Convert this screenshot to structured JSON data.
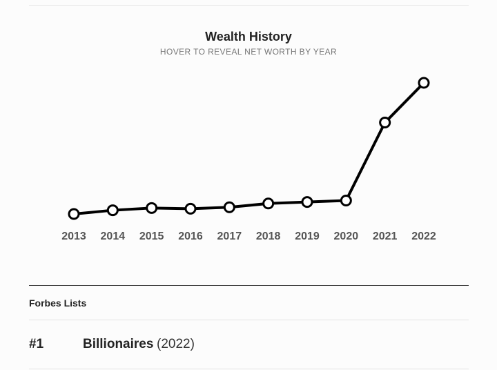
{
  "wealth_history": {
    "title": "Wealth History",
    "subtitle": "HOVER TO REVEAL NET WORTH BY YEAR"
  },
  "chart_data": {
    "type": "line",
    "x": [
      "2013",
      "2014",
      "2015",
      "2016",
      "2017",
      "2018",
      "2019",
      "2020",
      "2021",
      "2022"
    ],
    "series": [
      {
        "values": [
          0.0,
          0.5,
          0.8,
          0.7,
          0.9,
          1.4,
          1.6,
          1.8,
          12.2,
          17.5
        ]
      }
    ],
    "grid": false,
    "line_color": "#000000",
    "marker_fill": "#ffffff"
  },
  "forbes_lists": {
    "heading": "Forbes Lists",
    "items": [
      {
        "rank": "#1",
        "name": "Billionaires",
        "year": "(2022)"
      }
    ]
  }
}
